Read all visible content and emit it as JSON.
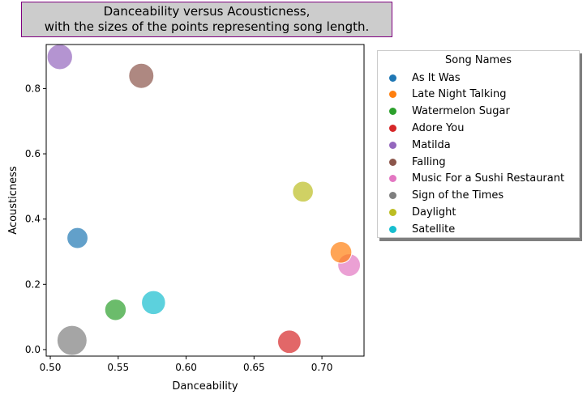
{
  "chart_data": {
    "type": "scatter",
    "title_lines": [
      "Danceability versus Acousticness,",
      "with the sizes of the points representing song length."
    ],
    "xlabel": "Danceability",
    "ylabel": "Acousticness",
    "xlim": [
      0.497,
      0.731
    ],
    "ylim": [
      -0.02,
      0.935
    ],
    "xticks": [
      0.5,
      0.55,
      0.6,
      0.65,
      0.7
    ],
    "xtick_labels": [
      "0.50",
      "0.55",
      "0.60",
      "0.65",
      "0.70"
    ],
    "yticks": [
      0.0,
      0.2,
      0.4,
      0.6,
      0.8
    ],
    "ytick_labels": [
      "0.0",
      "0.2",
      "0.4",
      "0.6",
      "0.8"
    ],
    "legend_title": "Song Names",
    "legend_position": "outside-right",
    "series": [
      {
        "name": "As It Was",
        "x": 0.52,
        "y": 0.342,
        "size": 167,
        "color": "#1f77b4"
      },
      {
        "name": "Late Night Talking",
        "x": 0.714,
        "y": 0.298,
        "size": 178,
        "color": "#ff7f0e"
      },
      {
        "name": "Watermelon Sugar",
        "x": 0.548,
        "y": 0.122,
        "size": 174,
        "color": "#2ca02c"
      },
      {
        "name": "Adore You",
        "x": 0.676,
        "y": 0.024,
        "size": 207,
        "color": "#d62728"
      },
      {
        "name": "Matilda",
        "x": 0.507,
        "y": 0.897,
        "size": 246,
        "color": "#9467bd"
      },
      {
        "name": "Falling",
        "x": 0.567,
        "y": 0.839,
        "size": 240,
        "color": "#8c564b"
      },
      {
        "name": "Music For a Sushi Restaurant",
        "x": 0.72,
        "y": 0.259,
        "size": 194,
        "color": "#e377c2"
      },
      {
        "name": "Sign of the Times",
        "x": 0.516,
        "y": 0.028,
        "size": 341,
        "color": "#7f7f7f"
      },
      {
        "name": "Daylight",
        "x": 0.686,
        "y": 0.484,
        "size": 164,
        "color": "#bcbd22"
      },
      {
        "name": "Satellite",
        "x": 0.576,
        "y": 0.144,
        "size": 218,
        "color": "#17becf"
      }
    ]
  }
}
